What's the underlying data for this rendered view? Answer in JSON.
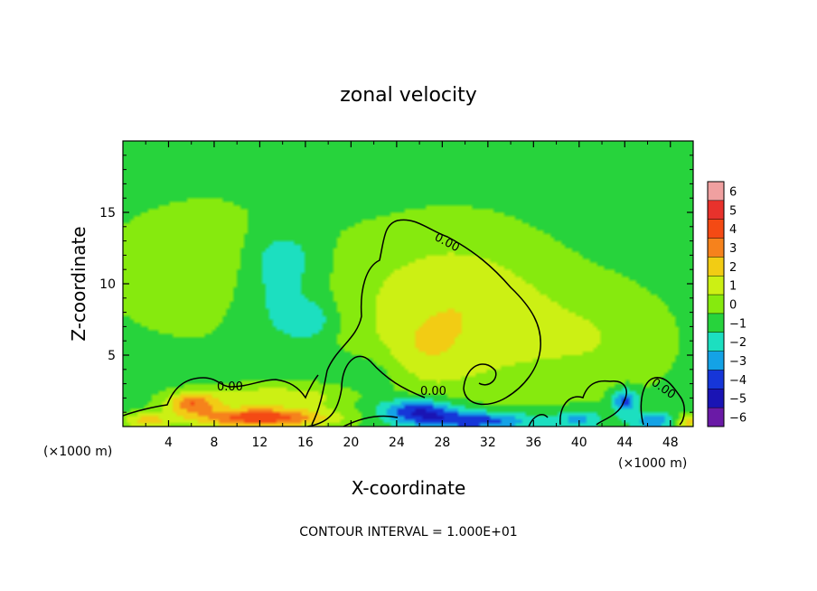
{
  "chart_data": {
    "type": "heatmap",
    "title": "zonal velocity",
    "xlabel": "X-coordinate",
    "ylabel": "Z-coordinate",
    "x_unit_label": "(×1000 m)",
    "x_unit_label_right": "(×1000 m)",
    "footer": "CONTOUR INTERVAL = 1.000E+01",
    "xlim": [
      0,
      50
    ],
    "ylim": [
      0,
      20
    ],
    "x_ticks": [
      4,
      8,
      12,
      16,
      20,
      24,
      28,
      32,
      36,
      40,
      44,
      48
    ],
    "y_ticks": [
      5,
      10,
      15
    ],
    "colorbar": {
      "levels": [
        6,
        5,
        4,
        3,
        2,
        1,
        0,
        -1,
        -2,
        -3,
        -4,
        -5,
        -6
      ],
      "colors": [
        "#f0a0a0",
        "#e8322c",
        "#f44a14",
        "#f6821c",
        "#f2cc14",
        "#ccf014",
        "#86ea0e",
        "#27d33c",
        "#1cdfc0",
        "#14a2e6",
        "#1636d8",
        "#1a14b4",
        "#6a1aa6"
      ]
    },
    "contour_label": "0.00",
    "field_features": [
      {
        "kind": "background",
        "value": -1.0
      },
      {
        "kind": "blob",
        "x": 29,
        "z": 8,
        "sx": 6.5,
        "sz": 4.2,
        "value": 2.4
      },
      {
        "kind": "blob",
        "x": 26,
        "z": 5,
        "sx": 2.5,
        "sz": 1.6,
        "value": 0.8
      },
      {
        "kind": "blob",
        "x": 8,
        "z": 11,
        "sx": 7,
        "sz": 3.5,
        "value": 1.4
      },
      {
        "kind": "blob",
        "x": 42,
        "z": 6,
        "sx": 5,
        "sz": 3,
        "value": 1.2
      },
      {
        "kind": "blob",
        "x": 13.5,
        "z": 9.5,
        "sx": 3,
        "sz": 2.8,
        "value": -1.6
      },
      {
        "kind": "blob",
        "x": 14,
        "z": 12,
        "sx": 2,
        "sz": 1.3,
        "value": -1.0
      },
      {
        "kind": "blob",
        "x": 16.5,
        "z": 7.5,
        "sx": 1.4,
        "sz": 0.9,
        "value": -1.3
      },
      {
        "kind": "blob",
        "x": 22,
        "z": 3.5,
        "sx": 2.2,
        "sz": 1.4,
        "value": -0.9
      },
      {
        "kind": "blob",
        "x": 26,
        "z": 1.1,
        "sx": 2.4,
        "sz": 0.6,
        "value": -3.8
      },
      {
        "kind": "blob",
        "x": 31,
        "z": 0.4,
        "sx": 3.6,
        "sz": 0.45,
        "value": -3.4
      },
      {
        "kind": "blob",
        "x": 44,
        "z": 1.8,
        "sx": 0.8,
        "sz": 0.6,
        "value": -3.2
      },
      {
        "kind": "blob",
        "x": 46.5,
        "z": 0.4,
        "sx": 1.5,
        "sz": 0.4,
        "value": -2.4
      },
      {
        "kind": "blob",
        "x": 40,
        "z": 0.5,
        "sx": 1.4,
        "sz": 0.45,
        "value": -2.0
      },
      {
        "kind": "blob",
        "x": 12,
        "z": 0.6,
        "sx": 4.5,
        "sz": 0.5,
        "value": 5.2
      },
      {
        "kind": "blob",
        "x": 6,
        "z": 1.6,
        "sx": 1.6,
        "sz": 0.5,
        "value": 3.6
      },
      {
        "kind": "blob",
        "x": 13,
        "z": 2.1,
        "sx": 5,
        "sz": 0.6,
        "value": 2.2
      },
      {
        "kind": "blob",
        "x": 2,
        "z": 0.4,
        "sx": 1.5,
        "sz": 0.4,
        "value": 2.6
      },
      {
        "kind": "blob",
        "x": 49.5,
        "z": 0.3,
        "sx": 0.8,
        "sz": 0.4,
        "value": 3.0
      }
    ]
  }
}
